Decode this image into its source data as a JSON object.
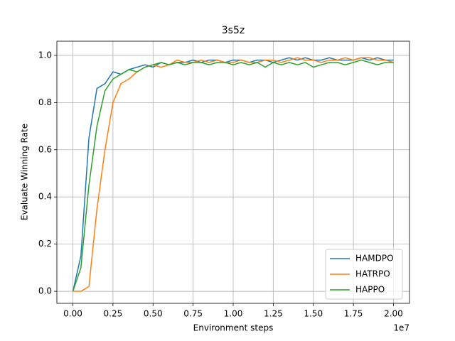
{
  "chart_data": {
    "type": "line",
    "title": "3s5z",
    "x_label": "Environment steps",
    "y_label": "Evaluate Winning Rate",
    "x_offset_label": "1e7",
    "x": [
      0,
      0.05,
      0.1,
      0.15,
      0.2,
      0.25,
      0.3,
      0.35,
      0.4,
      0.45,
      0.5,
      0.55,
      0.6,
      0.65,
      0.7,
      0.75,
      0.8,
      0.85,
      0.9,
      0.95,
      1.0,
      1.05,
      1.1,
      1.15,
      1.2,
      1.25,
      1.3,
      1.35,
      1.4,
      1.45,
      1.5,
      1.55,
      1.6,
      1.65,
      1.7,
      1.75,
      1.8,
      1.85,
      1.9,
      1.95,
      2.0
    ],
    "series": [
      {
        "name": "HAMDPO",
        "color": "#1f77b4",
        "values": [
          0,
          0.15,
          0.65,
          0.86,
          0.88,
          0.93,
          0.92,
          0.94,
          0.95,
          0.96,
          0.95,
          0.97,
          0.96,
          0.97,
          0.97,
          0.98,
          0.97,
          0.98,
          0.98,
          0.97,
          0.98,
          0.98,
          0.97,
          0.98,
          0.98,
          0.97,
          0.98,
          0.99,
          0.98,
          0.99,
          0.98,
          0.98,
          0.99,
          0.98,
          0.98,
          0.98,
          0.99,
          0.98,
          0.99,
          0.98,
          0.98
        ]
      },
      {
        "name": "HATRPO",
        "color": "#ff7f0e",
        "values": [
          0,
          0,
          0.02,
          0.35,
          0.6,
          0.8,
          0.88,
          0.9,
          0.93,
          0.95,
          0.96,
          0.95,
          0.96,
          0.98,
          0.97,
          0.97,
          0.98,
          0.97,
          0.98,
          0.97,
          0.97,
          0.98,
          0.97,
          0.97,
          0.98,
          0.98,
          0.97,
          0.98,
          0.99,
          0.98,
          0.98,
          0.97,
          0.98,
          0.98,
          0.99,
          0.98,
          0.99,
          0.99,
          0.98,
          0.98,
          0.97
        ]
      },
      {
        "name": "HAPPO",
        "color": "#2ca02c",
        "values": [
          0,
          0.1,
          0.45,
          0.7,
          0.85,
          0.9,
          0.92,
          0.94,
          0.93,
          0.95,
          0.96,
          0.97,
          0.96,
          0.97,
          0.96,
          0.97,
          0.97,
          0.96,
          0.97,
          0.97,
          0.96,
          0.97,
          0.96,
          0.97,
          0.95,
          0.97,
          0.96,
          0.97,
          0.96,
          0.97,
          0.95,
          0.96,
          0.97,
          0.97,
          0.96,
          0.97,
          0.98,
          0.97,
          0.96,
          0.97,
          0.97
        ]
      }
    ],
    "xlim": [
      -0.1,
      2.1
    ],
    "xticks": [
      {
        "value": 0,
        "label": "0.00"
      },
      0.25,
      {
        "value": 0.5,
        "label": "0.50"
      },
      0.75,
      {
        "value": 1,
        "label": "1.00"
      },
      1.25,
      {
        "value": 1.5,
        "label": "1.50"
      },
      1.75,
      {
        "value": 2,
        "label": "2.00"
      }
    ],
    "ylim": [
      -0.051,
      1.06
    ],
    "yticks": [
      {
        "value": 0,
        "label": "0.0"
      },
      0.2,
      0.4,
      0.6,
      0.8,
      {
        "value": 1,
        "label": "1.0"
      }
    ],
    "grid": true,
    "legend": "lower right"
  }
}
